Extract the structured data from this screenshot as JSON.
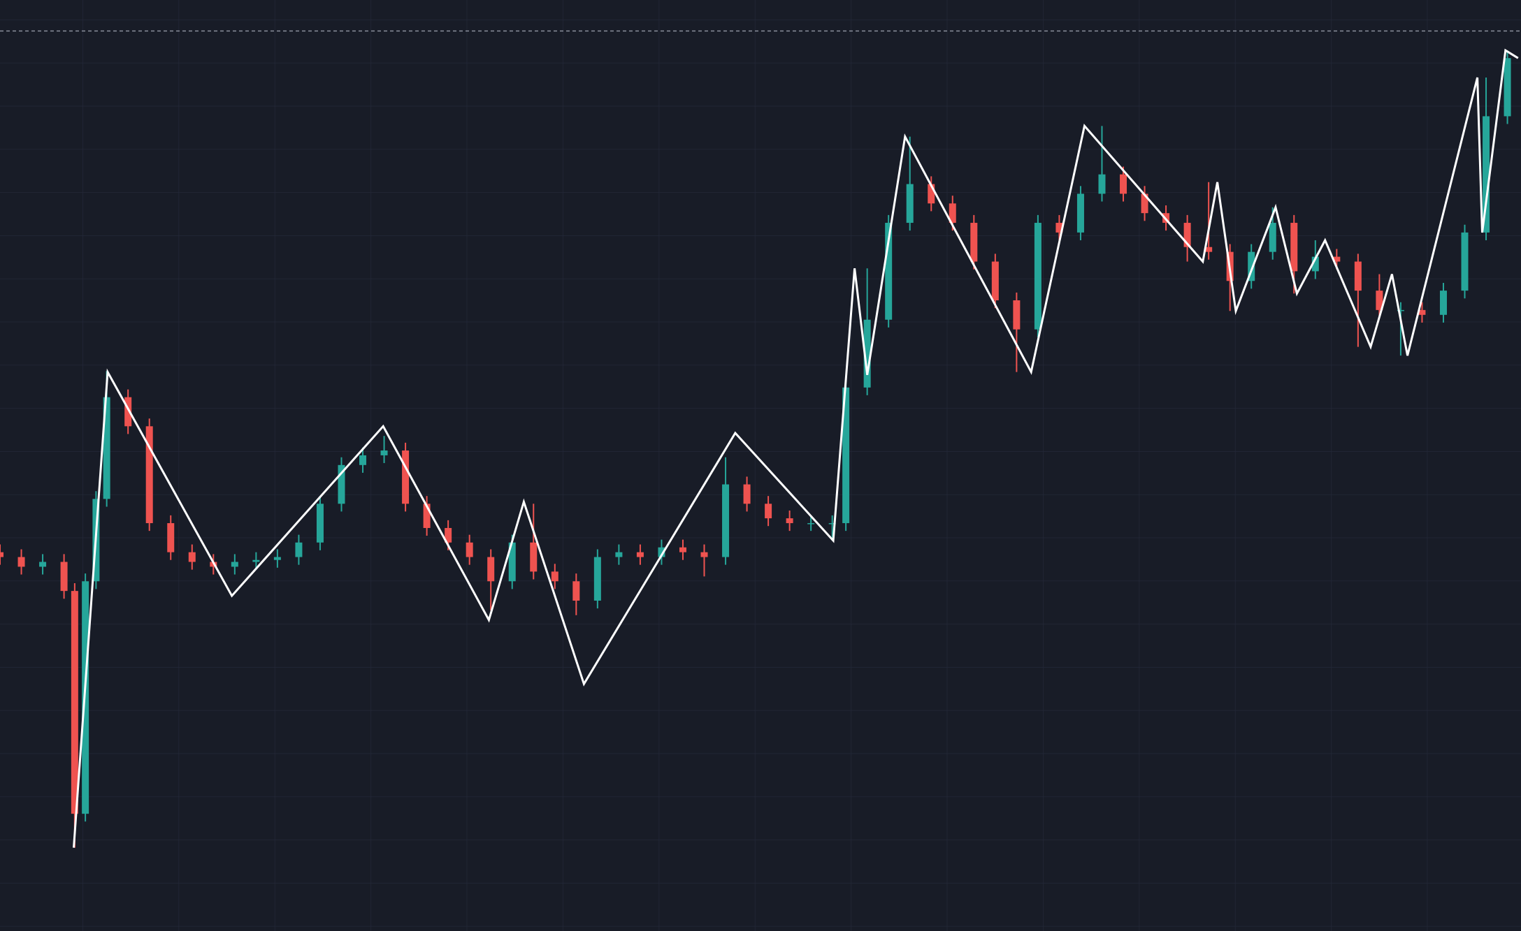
{
  "chart_data": {
    "type": "candlestick",
    "x": [
      0,
      22,
      44,
      66,
      77,
      88,
      99,
      110,
      132,
      154,
      176,
      198,
      220,
      242,
      264,
      286,
      308,
      330,
      352,
      374,
      396,
      418,
      440,
      462,
      484,
      506,
      528,
      550,
      572,
      594,
      616,
      638,
      660,
      682,
      704,
      726,
      748,
      770,
      792,
      814,
      836,
      858,
      872,
      894,
      916,
      938,
      960,
      982,
      1004,
      1026,
      1048,
      1070,
      1092,
      1114,
      1136,
      1158,
      1180,
      1202,
      1224,
      1246,
      1268,
      1290,
      1312,
      1334,
      1356,
      1378,
      1400,
      1422,
      1444,
      1466,
      1488,
      1510,
      1532,
      1554
    ],
    "open": [
      391,
      386,
      376,
      381,
      351,
      121,
      361,
      446,
      551,
      521,
      421,
      391,
      381,
      376,
      381,
      383,
      386,
      401,
      441,
      481,
      491,
      496,
      441,
      416,
      401,
      386,
      361,
      401,
      371,
      361,
      341,
      386,
      391,
      386,
      396,
      391,
      386,
      461,
      441,
      426,
      421,
      421,
      421,
      561,
      631,
      731,
      771,
      751,
      731,
      691,
      651,
      621,
      731,
      721,
      761,
      781,
      761,
      741,
      731,
      706,
      701,
      671,
      701,
      731,
      681,
      696,
      691,
      661,
      641,
      641,
      636,
      661,
      721,
      841
    ],
    "high": [
      399,
      394,
      389,
      389,
      359,
      369,
      454,
      578,
      559,
      529,
      429,
      399,
      389,
      389,
      391,
      394,
      409,
      449,
      489,
      499,
      511,
      504,
      449,
      424,
      409,
      394,
      409,
      441,
      379,
      369,
      394,
      399,
      399,
      404,
      404,
      399,
      489,
      469,
      449,
      434,
      429,
      429,
      569,
      684,
      739,
      820,
      779,
      759,
      739,
      699,
      659,
      739,
      739,
      769,
      831,
      789,
      769,
      749,
      739,
      773,
      709,
      709,
      747,
      739,
      713,
      704,
      699,
      678,
      649,
      649,
      669,
      729,
      881,
      909
    ],
    "low": [
      378,
      368,
      368,
      343,
      86,
      113,
      353,
      438,
      513,
      413,
      383,
      373,
      368,
      368,
      373,
      375,
      378,
      393,
      433,
      473,
      483,
      433,
      408,
      393,
      378,
      331,
      353,
      363,
      353,
      326,
      333,
      378,
      378,
      378,
      383,
      366,
      378,
      433,
      418,
      413,
      413,
      403,
      413,
      553,
      623,
      723,
      743,
      723,
      683,
      643,
      577,
      613,
      713,
      713,
      753,
      753,
      733,
      723,
      691,
      693,
      640,
      663,
      693,
      658,
      673,
      683,
      603,
      633,
      594,
      628,
      628,
      653,
      713,
      833
    ],
    "close": [
      386,
      376,
      381,
      351,
      121,
      361,
      446,
      551,
      521,
      421,
      391,
      381,
      376,
      381,
      383,
      386,
      401,
      441,
      481,
      491,
      496,
      441,
      416,
      401,
      386,
      361,
      401,
      371,
      361,
      341,
      386,
      391,
      386,
      396,
      391,
      386,
      461,
      441,
      426,
      421,
      421,
      421,
      561,
      631,
      731,
      771,
      751,
      731,
      691,
      651,
      621,
      731,
      721,
      761,
      781,
      761,
      741,
      731,
      706,
      701,
      671,
      701,
      731,
      681,
      696,
      691,
      661,
      641,
      641,
      636,
      661,
      721,
      841,
      901
    ],
    "up_color": "#26a69a",
    "down_color": "#ef5350",
    "zigzag": {
      "color": "#ffffff",
      "x": [
        76,
        111,
        239,
        395,
        504,
        540,
        602,
        758,
        859,
        881,
        894,
        933,
        1063,
        1118,
        1240,
        1255,
        1274,
        1315,
        1337,
        1366,
        1413,
        1435,
        1451,
        1523,
        1528,
        1552,
        1565
      ],
      "values": [
        86,
        577,
        346,
        521,
        321,
        443,
        255,
        514,
        403,
        684,
        574,
        820,
        577,
        831,
        691,
        773,
        640,
        747,
        658,
        713,
        603,
        678,
        594,
        881,
        721,
        909,
        901
      ]
    },
    "reference_line": 929,
    "xlim": [
      0,
      1568
    ],
    "ylim": [
      0,
      961
    ],
    "grid": true
  }
}
